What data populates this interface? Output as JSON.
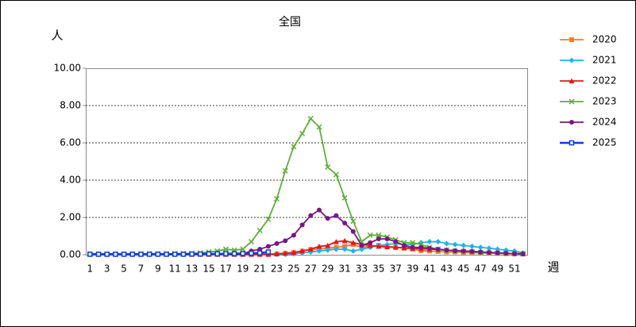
{
  "chart_data": {
    "type": "line",
    "title": "全国",
    "y_label": "人",
    "x_label": "週",
    "categories": [
      "1",
      null,
      "3",
      null,
      "5",
      null,
      "7",
      null,
      "9",
      null,
      "11",
      null,
      "13",
      null,
      "15",
      null,
      "17",
      null,
      "19",
      null,
      "21",
      null,
      "23",
      null,
      "25",
      null,
      "27",
      null,
      "29",
      null,
      "31",
      null,
      "33",
      null,
      "35",
      null,
      "37",
      null,
      "39",
      null,
      "41",
      null,
      "43",
      null,
      "45",
      null,
      "47",
      null,
      "49",
      null,
      "51",
      null
    ],
    "ylim": [
      0,
      10
    ],
    "yticks": [
      {
        "value": 0,
        "label": "0.00"
      },
      {
        "value": 2,
        "label": "2.00"
      },
      {
        "value": 4,
        "label": "4.00"
      },
      {
        "value": 6,
        "label": "6.00"
      },
      {
        "value": 8,
        "label": "8.00"
      },
      {
        "value": 10,
        "label": "10.00"
      }
    ],
    "grid": true,
    "legend": "right",
    "series": [
      {
        "name": "2020",
        "color": "#ed7d31",
        "marker": "square",
        "values": [
          0.02,
          0.02,
          0.02,
          0.02,
          0.02,
          0.02,
          0.02,
          0.02,
          0.02,
          0.02,
          0.02,
          0.02,
          0.02,
          0.02,
          0.02,
          0.02,
          0.02,
          0.02,
          0.02,
          0.02,
          0.02,
          0.02,
          0.05,
          0.08,
          0.12,
          0.2,
          0.28,
          0.3,
          0.35,
          0.4,
          0.45,
          0.55,
          0.4,
          0.45,
          0.5,
          0.45,
          0.4,
          0.35,
          0.3,
          0.22,
          0.2,
          0.18,
          0.15,
          0.15,
          0.12,
          0.1,
          0.1,
          0.08,
          0.08,
          0.06,
          0.05,
          0.05
        ]
      },
      {
        "name": "2021",
        "color": "#1fb3e8",
        "marker": "diamond",
        "values": [
          0.02,
          0.02,
          0.02,
          0.02,
          0.02,
          0.02,
          0.02,
          0.02,
          0.02,
          0.02,
          0.02,
          0.02,
          0.02,
          0.02,
          0.02,
          0.02,
          0.02,
          0.02,
          0.02,
          0.02,
          0.02,
          0.02,
          0.02,
          0.02,
          0.05,
          0.1,
          0.15,
          0.2,
          0.25,
          0.3,
          0.3,
          0.2,
          0.3,
          0.4,
          0.5,
          0.55,
          0.6,
          0.55,
          0.55,
          0.65,
          0.7,
          0.7,
          0.6,
          0.55,
          0.5,
          0.45,
          0.4,
          0.35,
          0.3,
          0.25,
          0.2,
          0.1
        ]
      },
      {
        "name": "2022",
        "color": "#e8141c",
        "marker": "triangle",
        "values": [
          0.02,
          0.02,
          0.02,
          0.02,
          0.02,
          0.02,
          0.02,
          0.02,
          0.02,
          0.02,
          0.02,
          0.02,
          0.02,
          0.02,
          0.02,
          0.02,
          0.02,
          0.02,
          0.02,
          0.02,
          0.02,
          0.02,
          0.05,
          0.08,
          0.12,
          0.2,
          0.3,
          0.45,
          0.5,
          0.7,
          0.75,
          0.65,
          0.55,
          0.5,
          0.45,
          0.42,
          0.4,
          0.38,
          0.35,
          0.32,
          0.3,
          0.28,
          0.25,
          0.22,
          0.2,
          0.18,
          0.15,
          0.12,
          0.1,
          0.08,
          0.06,
          0.05
        ]
      },
      {
        "name": "2023",
        "color": "#5cb035",
        "marker": "x",
        "values": [
          0.02,
          0.02,
          0.03,
          0.03,
          0.03,
          0.04,
          0.04,
          0.05,
          0.05,
          0.05,
          0.06,
          0.07,
          0.08,
          0.1,
          0.15,
          0.2,
          0.3,
          0.25,
          0.3,
          0.7,
          1.3,
          1.9,
          3.0,
          4.5,
          5.8,
          6.5,
          7.3,
          6.85,
          4.7,
          4.3,
          3.05,
          1.8,
          0.7,
          1.05,
          1.05,
          0.95,
          0.8,
          0.65,
          0.65,
          0.55,
          0.4,
          0.3,
          0.25,
          0.2,
          0.18,
          0.15,
          0.12,
          0.1,
          0.08,
          0.07,
          0.06,
          0.05
        ]
      },
      {
        "name": "2024",
        "color": "#7b1685",
        "marker": "circle",
        "values": [
          0.05,
          0.05,
          0.05,
          0.05,
          0.05,
          0.05,
          0.05,
          0.05,
          0.05,
          0.05,
          0.05,
          0.05,
          0.05,
          0.05,
          0.05,
          0.05,
          0.05,
          0.05,
          0.05,
          0.2,
          0.3,
          0.45,
          0.6,
          0.75,
          1.05,
          1.6,
          2.1,
          2.4,
          1.95,
          2.1,
          1.7,
          1.25,
          0.5,
          0.65,
          0.85,
          0.85,
          0.7,
          0.5,
          0.4,
          0.4,
          0.35,
          0.3,
          0.25,
          0.22,
          0.2,
          0.18,
          0.15,
          0.13,
          0.1,
          0.08,
          0.06,
          0.05
        ]
      },
      {
        "name": "2025",
        "color": "#0a3ed6",
        "marker": "hollow-square",
        "values": [
          0.03,
          0.03,
          0.03,
          0.03,
          0.03,
          0.03,
          0.03,
          0.03,
          0.03,
          0.03,
          0.03,
          0.03,
          0.04,
          0.04,
          0.05,
          0.05,
          0.06,
          0.06,
          0.07,
          0.08,
          0.1,
          0.15,
          null,
          null,
          null,
          null,
          null,
          null,
          null,
          null,
          null,
          null,
          null,
          null,
          null,
          null,
          null,
          null,
          null,
          null,
          null,
          null,
          null,
          null,
          null,
          null,
          null,
          null,
          null,
          null,
          null,
          null
        ]
      }
    ]
  }
}
